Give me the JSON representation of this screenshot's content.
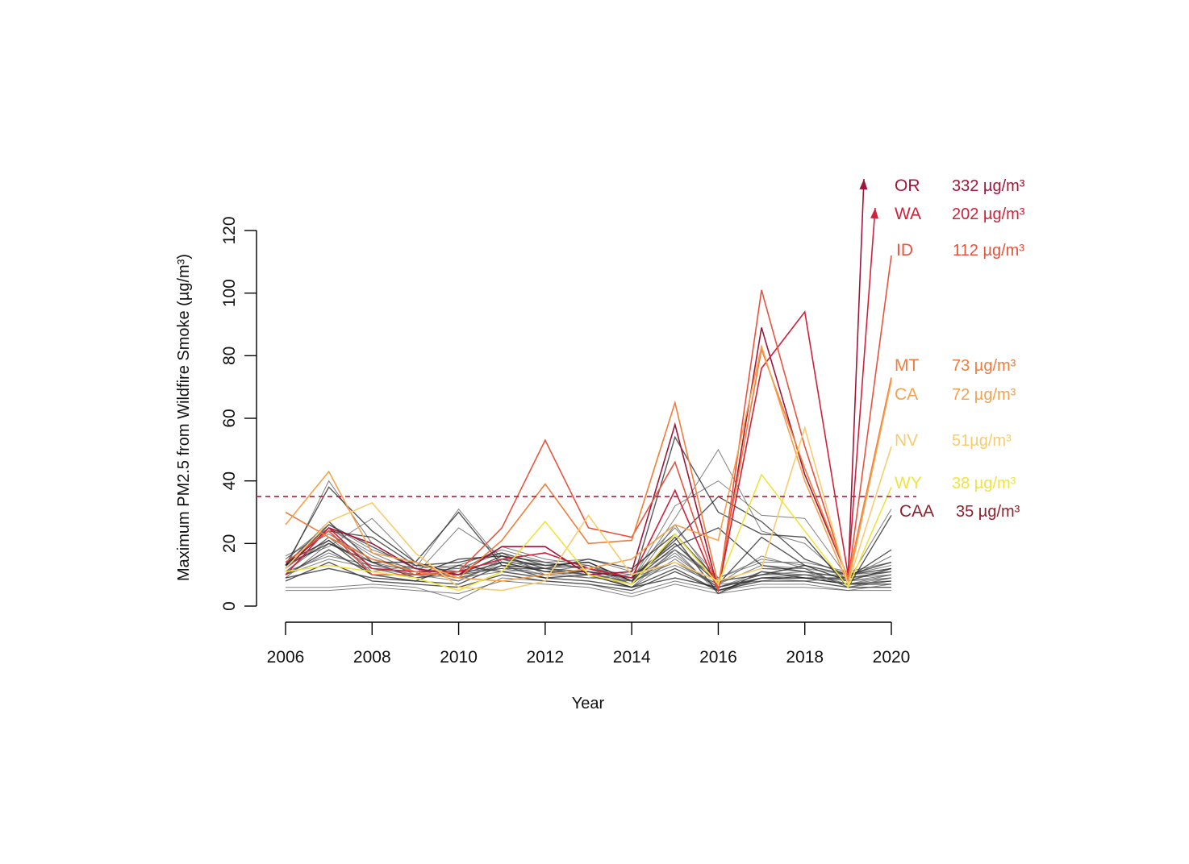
{
  "chart_data": {
    "type": "line",
    "xlabel": "Year",
    "ylabel": "Maximum PM2.5 from Wildfire Smoke (µg/m³)",
    "x": [
      2006,
      2007,
      2008,
      2009,
      2010,
      2011,
      2012,
      2013,
      2014,
      2015,
      2016,
      2017,
      2018,
      2019,
      2020
    ],
    "xticks": [
      "2006",
      "2008",
      "2010",
      "2012",
      "2014",
      "2016",
      "2018",
      "2020"
    ],
    "yticks": [
      "0",
      "20",
      "40",
      "60",
      "80",
      "100",
      "120"
    ],
    "xlim": [
      2006,
      2020
    ],
    "ylim": [
      0,
      120
    ],
    "threshold": {
      "value": 35,
      "color": "#a3263a",
      "style": "dashed"
    },
    "highlighted": [
      {
        "state": "OR",
        "value_label": "332 µg/m³",
        "color": "#a0163a",
        "arrow": true,
        "values": [
          12,
          25,
          20,
          12,
          10,
          19,
          19,
          10,
          11,
          58,
          5,
          89,
          42,
          9,
          332
        ]
      },
      {
        "state": "WA",
        "value_label": "202 µg/m³",
        "color": "#d1203a",
        "arrow": true,
        "values": [
          10,
          25,
          12,
          11,
          11,
          15,
          17,
          12,
          9,
          37,
          5,
          76,
          94,
          10,
          202
        ]
      },
      {
        "state": "ID",
        "value_label": "112 µg/m³",
        "color": "#e8533e",
        "arrow": false,
        "values": [
          14,
          24,
          10,
          10,
          11,
          25,
          53,
          25,
          22,
          46,
          5,
          101,
          51,
          8,
          112
        ]
      },
      {
        "state": "MT",
        "value_label": "73 µg/m³",
        "color": "#f07d3a",
        "arrow": false,
        "values": [
          30,
          22,
          15,
          11,
          9,
          21,
          39,
          20,
          21,
          65,
          7,
          82,
          44,
          9,
          73
        ]
      },
      {
        "state": "CA",
        "value_label": "72 µg/m³",
        "color": "#f4a24d",
        "arrow": false,
        "values": [
          26,
          43,
          17,
          14,
          9,
          8,
          10,
          12,
          15,
          26,
          21,
          83,
          40,
          7,
          72
        ]
      },
      {
        "state": "NV",
        "value_label": "51µg/m³",
        "color": "#f7cc70",
        "arrow": false,
        "values": [
          12,
          27,
          33,
          17,
          6,
          5,
          8,
          29,
          10,
          14,
          8,
          12,
          57,
          7,
          51
        ]
      },
      {
        "state": "WY",
        "value_label": "38 µg/m³",
        "color": "#efe340",
        "arrow": false,
        "values": [
          11,
          13,
          11,
          9,
          5,
          11,
          27,
          10,
          7,
          23,
          7,
          42,
          24,
          6,
          38
        ]
      },
      {
        "state": "CAA",
        "value_label": "35 µg/m³",
        "color": "#8e1f2c",
        "arrow": false,
        "values": []
      }
    ],
    "background_series": [
      [
        12,
        26,
        19,
        12,
        10,
        16,
        14,
        12,
        9,
        20,
        7,
        22,
        13,
        10,
        12
      ],
      [
        14,
        24,
        12,
        11,
        9,
        13,
        12,
        11,
        7,
        17,
        5,
        9,
        10,
        8,
        9
      ],
      [
        9,
        20,
        13,
        10,
        8,
        14,
        11,
        10,
        6,
        15,
        6,
        10,
        11,
        7,
        10
      ],
      [
        13,
        27,
        14,
        9,
        11,
        15,
        13,
        14,
        8,
        22,
        4,
        11,
        9,
        9,
        11
      ],
      [
        11,
        22,
        11,
        13,
        12,
        17,
        10,
        9,
        10,
        18,
        8,
        12,
        12,
        6,
        8
      ],
      [
        15,
        25,
        16,
        10,
        10,
        12,
        12,
        13,
        9,
        14,
        7,
        8,
        10,
        10,
        12
      ],
      [
        10,
        18,
        10,
        8,
        7,
        13,
        9,
        8,
        6,
        12,
        5,
        9,
        9,
        7,
        7
      ],
      [
        16,
        23,
        15,
        12,
        13,
        18,
        14,
        15,
        11,
        25,
        9,
        14,
        14,
        11,
        14
      ],
      [
        12,
        40,
        20,
        12,
        31,
        14,
        13,
        12,
        8,
        28,
        50,
        24,
        20,
        8,
        31
      ],
      [
        13,
        38,
        24,
        14,
        30,
        13,
        12,
        10,
        7,
        54,
        30,
        23,
        22,
        6,
        29
      ],
      [
        11,
        21,
        12,
        10,
        25,
        16,
        11,
        13,
        8,
        32,
        40,
        29,
        28,
        9,
        16
      ],
      [
        14,
        19,
        28,
        14,
        9,
        11,
        12,
        11,
        6,
        18,
        9,
        15,
        13,
        10,
        11
      ],
      [
        8,
        14,
        8,
        7,
        6,
        10,
        8,
        7,
        5,
        11,
        5,
        8,
        8,
        6,
        6
      ],
      [
        5,
        5,
        6,
        5,
        4,
        8,
        7,
        6,
        3,
        7,
        4,
        6,
        6,
        5,
        5
      ],
      [
        6,
        6,
        7,
        6,
        2,
        9,
        8,
        7,
        4,
        8,
        5,
        7,
        7,
        5,
        7
      ],
      [
        13,
        24,
        22,
        13,
        14,
        17,
        13,
        14,
        8,
        19,
        25,
        13,
        11,
        9,
        18
      ],
      [
        10,
        17,
        11,
        9,
        10,
        12,
        10,
        11,
        9,
        16,
        6,
        10,
        10,
        8,
        10
      ],
      [
        12,
        22,
        14,
        11,
        12,
        14,
        13,
        12,
        10,
        20,
        8,
        12,
        11,
        9,
        11
      ],
      [
        9,
        12,
        9,
        8,
        13,
        11,
        9,
        10,
        6,
        9,
        6,
        9,
        9,
        7,
        8
      ],
      [
        15,
        26,
        18,
        13,
        11,
        19,
        15,
        13,
        7,
        26,
        7,
        16,
        12,
        10,
        13
      ],
      [
        11,
        16,
        13,
        12,
        8,
        15,
        11,
        9,
        8,
        14,
        6,
        11,
        10,
        7,
        9
      ],
      [
        14,
        21,
        10,
        10,
        15,
        16,
        12,
        15,
        12,
        23,
        8,
        10,
        13,
        8,
        12
      ],
      [
        12,
        25,
        17,
        11,
        9,
        13,
        10,
        12,
        7,
        18,
        4,
        9,
        8,
        9,
        10
      ],
      [
        10,
        15,
        12,
        9,
        11,
        12,
        12,
        10,
        8,
        13,
        7,
        13,
        12,
        6,
        9
      ],
      [
        13,
        20,
        14,
        14,
        10,
        14,
        11,
        11,
        9,
        21,
        35,
        27,
        15,
        10,
        14
      ]
    ]
  }
}
